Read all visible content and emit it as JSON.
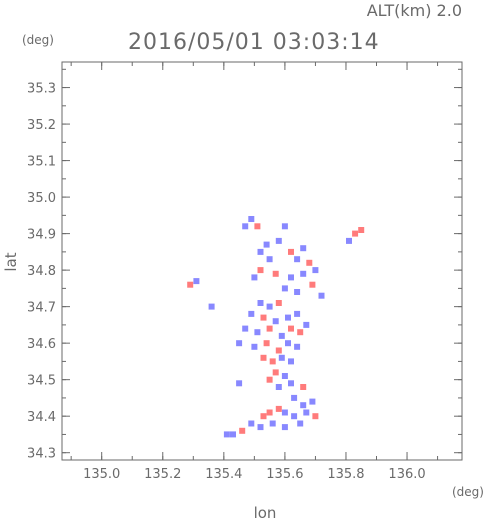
{
  "header": {
    "altitude_label": "ALT(km) 2.0",
    "timestamp": "2016/05/01 03:03:14",
    "y_unit": "(deg)",
    "x_unit": "(deg)"
  },
  "chart_data": {
    "type": "scatter",
    "xlabel": "lon",
    "ylabel": "lat",
    "xlim": [
      134.87,
      136.18
    ],
    "ylim": [
      34.28,
      35.37
    ],
    "xticks": [
      135.0,
      135.2,
      135.4,
      135.6,
      135.8,
      136.0
    ],
    "xtick_labels": [
      "135.0",
      "135.2",
      "135.4",
      "135.6",
      "135.8",
      "136.0"
    ],
    "yticks": [
      34.3,
      34.4,
      34.5,
      34.6,
      34.7,
      34.8,
      34.9,
      35.0,
      35.1,
      35.2,
      35.3
    ],
    "ytick_labels": [
      "34.3",
      "34.4",
      "34.5",
      "34.6",
      "34.7",
      "34.8",
      "34.9",
      "35.0",
      "35.1",
      "35.2",
      "35.3"
    ],
    "grid": false,
    "colors": {
      "positive": "#ff5a5a",
      "negative": "#6a6aff",
      "frame": "#6a6a6a"
    },
    "points": [
      {
        "x": 135.47,
        "y": 34.92,
        "s": -1
      },
      {
        "x": 135.49,
        "y": 34.94,
        "s": -1
      },
      {
        "x": 135.51,
        "y": 34.92,
        "s": 1
      },
      {
        "x": 135.54,
        "y": 34.87,
        "s": -1
      },
      {
        "x": 135.52,
        "y": 34.85,
        "s": -1
      },
      {
        "x": 135.55,
        "y": 34.83,
        "s": -1
      },
      {
        "x": 135.58,
        "y": 34.88,
        "s": -1
      },
      {
        "x": 135.6,
        "y": 34.92,
        "s": -1
      },
      {
        "x": 135.62,
        "y": 34.85,
        "s": 1
      },
      {
        "x": 135.64,
        "y": 34.83,
        "s": -1
      },
      {
        "x": 135.66,
        "y": 34.86,
        "s": -1
      },
      {
        "x": 135.68,
        "y": 34.82,
        "s": 1
      },
      {
        "x": 135.7,
        "y": 34.8,
        "s": -1
      },
      {
        "x": 135.66,
        "y": 34.79,
        "s": -1
      },
      {
        "x": 135.62,
        "y": 34.78,
        "s": -1
      },
      {
        "x": 135.6,
        "y": 34.75,
        "s": -1
      },
      {
        "x": 135.64,
        "y": 34.74,
        "s": -1
      },
      {
        "x": 135.69,
        "y": 34.76,
        "s": 1
      },
      {
        "x": 135.72,
        "y": 34.73,
        "s": -1
      },
      {
        "x": 135.52,
        "y": 34.8,
        "s": 1
      },
      {
        "x": 135.5,
        "y": 34.78,
        "s": -1
      },
      {
        "x": 135.57,
        "y": 34.79,
        "s": 1
      },
      {
        "x": 135.83,
        "y": 34.9,
        "s": 1
      },
      {
        "x": 135.85,
        "y": 34.91,
        "s": 1
      },
      {
        "x": 135.81,
        "y": 34.88,
        "s": -1
      },
      {
        "x": 135.29,
        "y": 34.76,
        "s": 1
      },
      {
        "x": 135.31,
        "y": 34.77,
        "s": -1
      },
      {
        "x": 135.36,
        "y": 34.7,
        "s": -1
      },
      {
        "x": 135.52,
        "y": 34.71,
        "s": -1
      },
      {
        "x": 135.55,
        "y": 34.7,
        "s": -1
      },
      {
        "x": 135.58,
        "y": 34.71,
        "s": 1
      },
      {
        "x": 135.49,
        "y": 34.68,
        "s": -1
      },
      {
        "x": 135.53,
        "y": 34.67,
        "s": 1
      },
      {
        "x": 135.57,
        "y": 34.66,
        "s": -1
      },
      {
        "x": 135.61,
        "y": 34.67,
        "s": -1
      },
      {
        "x": 135.64,
        "y": 34.68,
        "s": -1
      },
      {
        "x": 135.47,
        "y": 34.64,
        "s": -1
      },
      {
        "x": 135.51,
        "y": 34.63,
        "s": -1
      },
      {
        "x": 135.55,
        "y": 34.64,
        "s": 1
      },
      {
        "x": 135.59,
        "y": 34.62,
        "s": -1
      },
      {
        "x": 135.62,
        "y": 34.64,
        "s": 1
      },
      {
        "x": 135.65,
        "y": 34.63,
        "s": 1
      },
      {
        "x": 135.67,
        "y": 34.65,
        "s": -1
      },
      {
        "x": 135.45,
        "y": 34.6,
        "s": -1
      },
      {
        "x": 135.5,
        "y": 34.59,
        "s": -1
      },
      {
        "x": 135.54,
        "y": 34.6,
        "s": 1
      },
      {
        "x": 135.58,
        "y": 34.58,
        "s": 1
      },
      {
        "x": 135.61,
        "y": 34.6,
        "s": -1
      },
      {
        "x": 135.64,
        "y": 34.59,
        "s": -1
      },
      {
        "x": 135.53,
        "y": 34.56,
        "s": 1
      },
      {
        "x": 135.56,
        "y": 34.55,
        "s": 1
      },
      {
        "x": 135.59,
        "y": 34.56,
        "s": -1
      },
      {
        "x": 135.62,
        "y": 34.55,
        "s": -1
      },
      {
        "x": 135.57,
        "y": 34.52,
        "s": 1
      },
      {
        "x": 135.6,
        "y": 34.51,
        "s": -1
      },
      {
        "x": 135.55,
        "y": 34.5,
        "s": 1
      },
      {
        "x": 135.58,
        "y": 34.48,
        "s": -1
      },
      {
        "x": 135.62,
        "y": 34.49,
        "s": -1
      },
      {
        "x": 135.66,
        "y": 34.48,
        "s": 1
      },
      {
        "x": 135.45,
        "y": 34.49,
        "s": -1
      },
      {
        "x": 135.63,
        "y": 34.45,
        "s": -1
      },
      {
        "x": 135.66,
        "y": 34.43,
        "s": -1
      },
      {
        "x": 135.69,
        "y": 34.44,
        "s": -1
      },
      {
        "x": 135.58,
        "y": 34.42,
        "s": 1
      },
      {
        "x": 135.6,
        "y": 34.41,
        "s": -1
      },
      {
        "x": 135.63,
        "y": 34.4,
        "s": -1
      },
      {
        "x": 135.67,
        "y": 34.41,
        "s": -1
      },
      {
        "x": 135.7,
        "y": 34.4,
        "s": 1
      },
      {
        "x": 135.53,
        "y": 34.4,
        "s": 1
      },
      {
        "x": 135.55,
        "y": 34.41,
        "s": 1
      },
      {
        "x": 135.56,
        "y": 34.38,
        "s": -1
      },
      {
        "x": 135.52,
        "y": 34.37,
        "s": -1
      },
      {
        "x": 135.49,
        "y": 34.38,
        "s": -1
      },
      {
        "x": 135.46,
        "y": 34.36,
        "s": 1
      },
      {
        "x": 135.43,
        "y": 34.35,
        "s": -1
      },
      {
        "x": 135.41,
        "y": 34.35,
        "s": -1
      },
      {
        "x": 135.6,
        "y": 34.37,
        "s": -1
      },
      {
        "x": 135.65,
        "y": 34.38,
        "s": -1
      }
    ]
  }
}
